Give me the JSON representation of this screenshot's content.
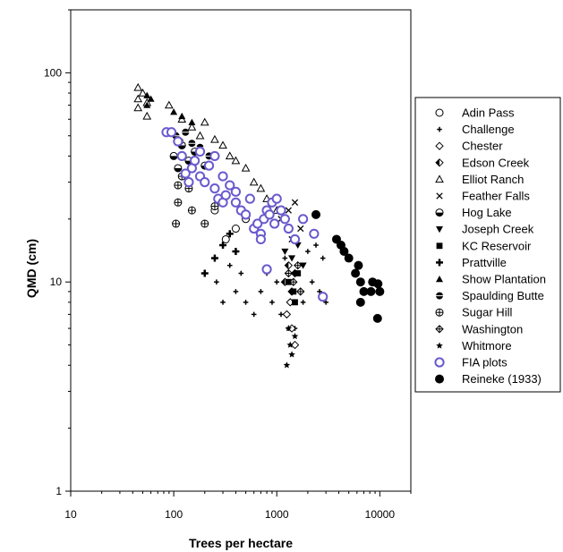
{
  "chart_data": {
    "type": "scatter",
    "xlabel": "Trees per hectare",
    "ylabel": "QMD (cm)",
    "x_scale": "log",
    "y_scale": "log",
    "xlim": [
      10,
      20000
    ],
    "ylim": [
      1,
      200
    ],
    "x_ticks": [
      {
        "value": 10,
        "label": "10"
      },
      {
        "value": 100,
        "label": "100"
      },
      {
        "value": 1000,
        "label": "1000"
      },
      {
        "value": 10000,
        "label": "10000"
      }
    ],
    "y_ticks": [
      {
        "value": 1,
        "label": "1"
      },
      {
        "value": 10,
        "label": "10"
      },
      {
        "value": 100,
        "label": "100"
      }
    ],
    "grid": false,
    "legend_position": "right",
    "series": [
      {
        "name": "Adin Pass",
        "marker": "circle-open",
        "color": "#000000",
        "points": [
          [
            250,
            22
          ],
          [
            320,
            16
          ],
          [
            400,
            18
          ],
          [
            500,
            20
          ]
        ]
      },
      {
        "name": "Challenge",
        "marker": "small-plus",
        "color": "#000000",
        "points": [
          [
            260,
            10
          ],
          [
            300,
            8
          ],
          [
            400,
            9
          ],
          [
            500,
            8
          ],
          [
            600,
            7
          ],
          [
            700,
            9
          ],
          [
            900,
            8
          ],
          [
            1100,
            7
          ],
          [
            1300,
            6
          ],
          [
            1500,
            6
          ],
          [
            1800,
            8
          ],
          [
            2200,
            10
          ],
          [
            2600,
            9
          ],
          [
            3000,
            8
          ],
          [
            350,
            12
          ],
          [
            450,
            11
          ],
          [
            800,
            11
          ],
          [
            1200,
            13
          ],
          [
            1600,
            12
          ],
          [
            2000,
            14
          ],
          [
            2400,
            15
          ],
          [
            2800,
            13
          ],
          [
            1000,
            10
          ],
          [
            1400,
            9
          ]
        ]
      },
      {
        "name": "Chester",
        "marker": "diamond-open",
        "color": "#000000",
        "points": [
          [
            1250,
            7
          ],
          [
            1400,
            6
          ],
          [
            1500,
            5
          ],
          [
            1350,
            8
          ]
        ]
      },
      {
        "name": "Edson Creek",
        "marker": "diamond-half",
        "color": "#000000",
        "points": [
          [
            1200,
            10
          ],
          [
            1300,
            12
          ],
          [
            1400,
            9
          ],
          [
            1500,
            11
          ]
        ]
      },
      {
        "name": "Elliot Ranch",
        "marker": "triangle-open",
        "color": "#000000",
        "points": [
          [
            45,
            85
          ],
          [
            45,
            75
          ],
          [
            45,
            68
          ],
          [
            50,
            80
          ],
          [
            55,
            72
          ],
          [
            55,
            62
          ],
          [
            90,
            70
          ],
          [
            120,
            60
          ],
          [
            150,
            55
          ],
          [
            180,
            50
          ],
          [
            200,
            58
          ],
          [
            250,
            48
          ],
          [
            300,
            45
          ],
          [
            350,
            40
          ],
          [
            400,
            38
          ],
          [
            500,
            35
          ],
          [
            600,
            30
          ],
          [
            700,
            28
          ],
          [
            800,
            25
          ],
          [
            1000,
            22
          ]
        ]
      },
      {
        "name": "Feather Falls",
        "marker": "x",
        "color": "#000000",
        "points": [
          [
            1100,
            20
          ],
          [
            1300,
            22
          ],
          [
            1500,
            24
          ],
          [
            1700,
            18
          ],
          [
            1400,
            16
          ]
        ]
      },
      {
        "name": "Hog Lake",
        "marker": "circle-half",
        "color": "#000000",
        "points": [
          [
            100,
            40
          ],
          [
            110,
            35
          ],
          [
            120,
            45
          ],
          [
            140,
            38
          ],
          [
            160,
            42
          ],
          [
            200,
            36
          ]
        ]
      },
      {
        "name": "Joseph Creek",
        "marker": "triangle-down",
        "color": "#000000",
        "points": [
          [
            1200,
            14
          ],
          [
            1400,
            13
          ],
          [
            1600,
            15
          ],
          [
            1800,
            12
          ]
        ]
      },
      {
        "name": "KC Reservoir",
        "marker": "square",
        "color": "#000000",
        "points": [
          [
            1300,
            10
          ],
          [
            1450,
            9
          ],
          [
            1600,
            11
          ],
          [
            1500,
            8
          ]
        ]
      },
      {
        "name": "Prattville",
        "marker": "cross",
        "color": "#000000",
        "points": [
          [
            200,
            11
          ],
          [
            250,
            13
          ],
          [
            300,
            15
          ],
          [
            350,
            17
          ],
          [
            400,
            14
          ]
        ]
      },
      {
        "name": "Show Plantation",
        "marker": "triangle",
        "color": "#000000",
        "points": [
          [
            55,
            78
          ],
          [
            55,
            70
          ],
          [
            60,
            75
          ],
          [
            100,
            65
          ],
          [
            120,
            62
          ],
          [
            150,
            58
          ]
        ]
      },
      {
        "name": "Spaulding Butte",
        "marker": "circle-dot",
        "color": "#000000",
        "points": [
          [
            105,
            50
          ],
          [
            115,
            47
          ],
          [
            130,
            52
          ],
          [
            150,
            46
          ],
          [
            180,
            44
          ],
          [
            220,
            40
          ]
        ]
      },
      {
        "name": "Sugar Hill",
        "marker": "circle-plus",
        "color": "#000000",
        "points": [
          [
            105,
            19
          ],
          [
            110,
            24
          ],
          [
            110,
            29
          ],
          [
            120,
            32
          ],
          [
            140,
            28
          ],
          [
            150,
            22
          ],
          [
            200,
            19
          ],
          [
            250,
            23
          ]
        ]
      },
      {
        "name": "Washington",
        "marker": "diamond-cross",
        "color": "#000000",
        "points": [
          [
            1300,
            11
          ],
          [
            1450,
            10
          ],
          [
            1600,
            12
          ],
          [
            1700,
            9
          ]
        ]
      },
      {
        "name": "Whitmore",
        "marker": "star",
        "color": "#000000",
        "points": [
          [
            1250,
            4
          ],
          [
            1350,
            5
          ],
          [
            1400,
            4.5
          ],
          [
            1500,
            5.5
          ],
          [
            1300,
            6
          ]
        ]
      },
      {
        "name": "FIA plots",
        "marker": "circle-open-purple",
        "color": "#6a5acd",
        "points": [
          [
            85,
            52
          ],
          [
            95,
            52
          ],
          [
            110,
            47
          ],
          [
            120,
            40
          ],
          [
            130,
            33
          ],
          [
            140,
            30
          ],
          [
            150,
            35
          ],
          [
            160,
            38
          ],
          [
            180,
            32
          ],
          [
            200,
            30
          ],
          [
            220,
            36
          ],
          [
            250,
            28
          ],
          [
            270,
            25
          ],
          [
            300,
            24
          ],
          [
            320,
            26
          ],
          [
            350,
            29
          ],
          [
            400,
            24
          ],
          [
            450,
            22
          ],
          [
            500,
            21
          ],
          [
            550,
            25
          ],
          [
            600,
            18
          ],
          [
            650,
            19
          ],
          [
            700,
            17
          ],
          [
            750,
            20
          ],
          [
            800,
            22
          ],
          [
            850,
            21
          ],
          [
            900,
            24
          ],
          [
            950,
            19
          ],
          [
            1000,
            25
          ],
          [
            1100,
            22
          ],
          [
            1200,
            20
          ],
          [
            1300,
            18
          ],
          [
            1500,
            16
          ],
          [
            1800,
            20
          ],
          [
            2300,
            17
          ],
          [
            2800,
            8.5
          ],
          [
            700,
            16
          ],
          [
            400,
            27
          ],
          [
            300,
            32
          ],
          [
            250,
            40
          ],
          [
            180,
            42
          ],
          [
            800,
            11.5
          ]
        ]
      },
      {
        "name": "Reineke (1933)",
        "marker": "circle-filled",
        "color": "#000000",
        "points": [
          [
            2400,
            21
          ],
          [
            3800,
            16
          ],
          [
            4200,
            15
          ],
          [
            4500,
            14
          ],
          [
            5000,
            13
          ],
          [
            5800,
            11
          ],
          [
            6200,
            12
          ],
          [
            6500,
            10
          ],
          [
            7000,
            9
          ],
          [
            8200,
            9
          ],
          [
            8500,
            10
          ],
          [
            9600,
            9.8
          ],
          [
            10000,
            9
          ],
          [
            6500,
            8
          ],
          [
            9500,
            6.7
          ]
        ]
      }
    ]
  }
}
